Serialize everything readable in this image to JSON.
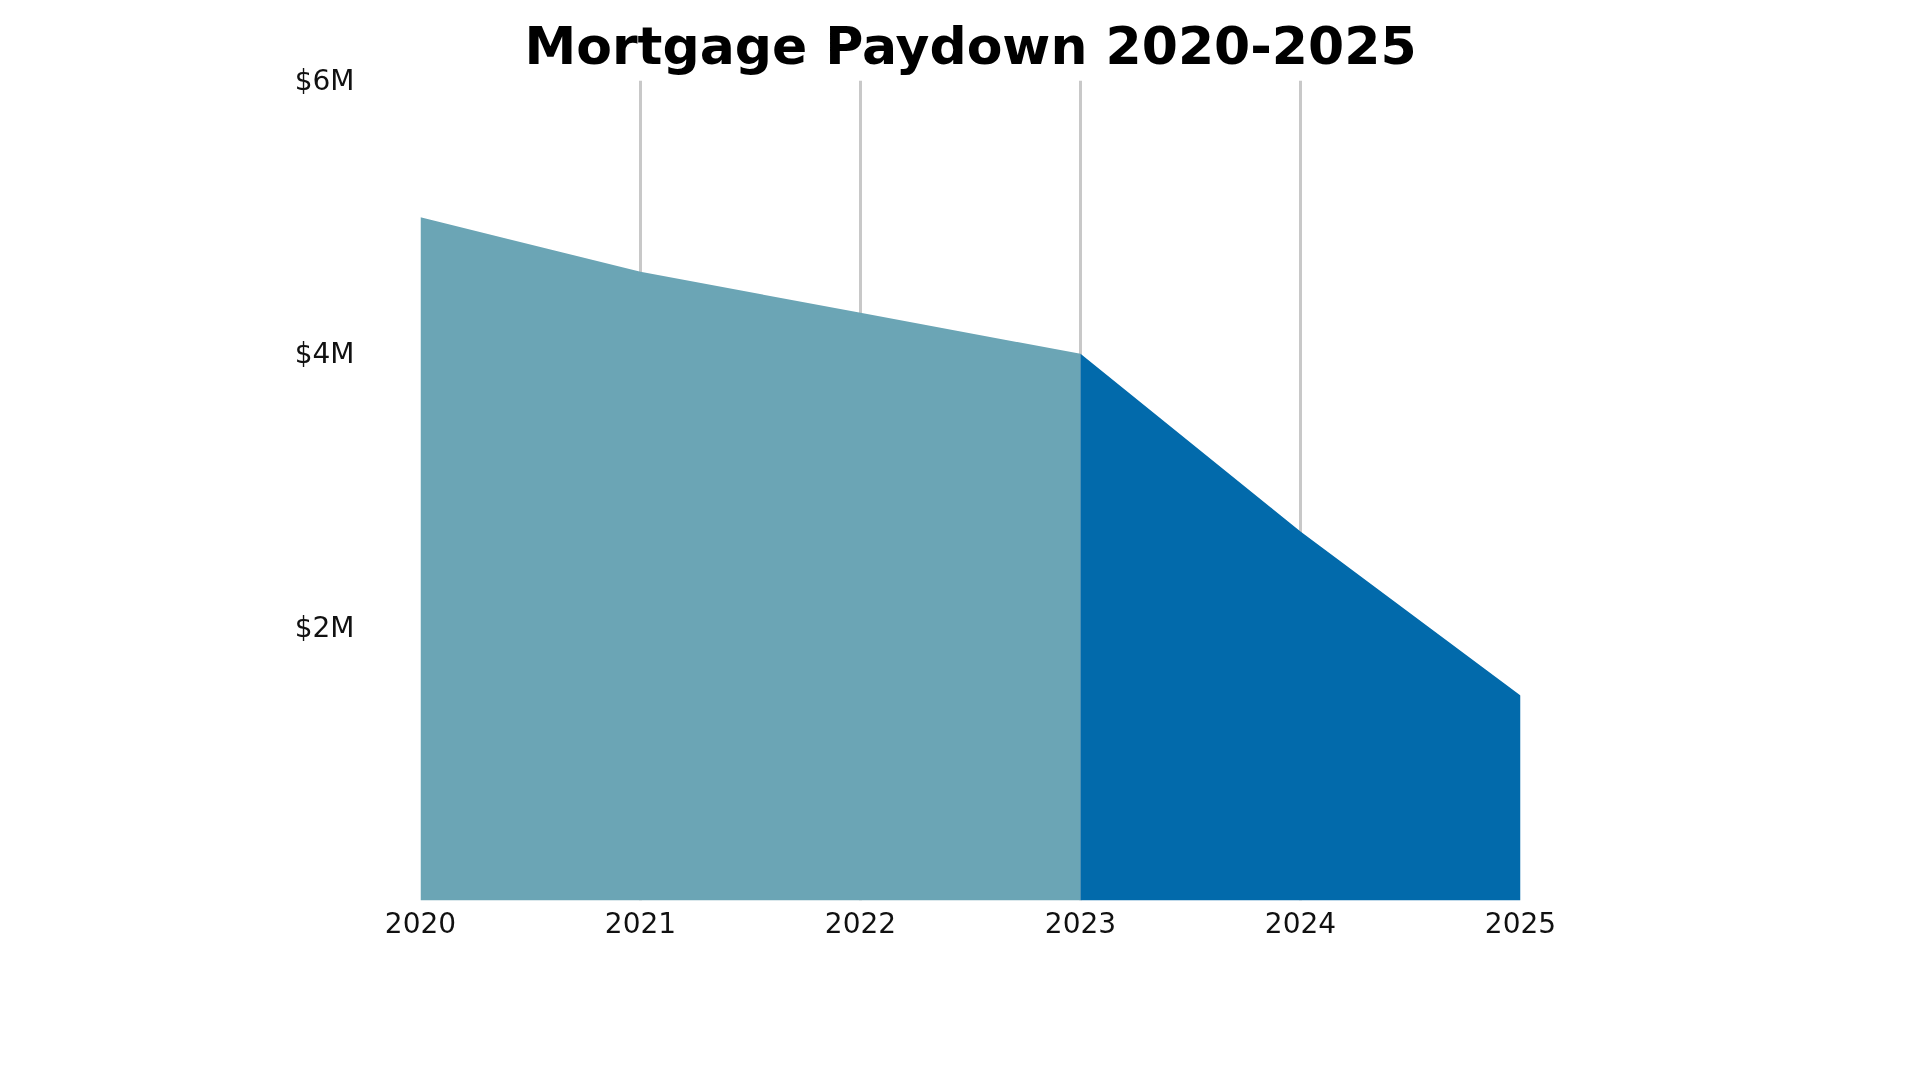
{
  "chart_data": {
    "type": "area",
    "title": "Mortgage Paydown 2020-2025",
    "series": [
      {
        "color": "#6ba5b5",
        "x": [
          2020,
          2021,
          2022,
          2023
        ],
        "values": [
          5.0,
          4.6,
          4.3,
          4.0
        ]
      },
      {
        "color": "#026aab",
        "x": [
          2023,
          2024,
          2025
        ],
        "values": [
          4.0,
          2.7,
          1.5
        ]
      }
    ],
    "xlim": [
      2020,
      2025
    ],
    "xticks": [
      2020,
      2021,
      2022,
      2023,
      2024,
      2025
    ],
    "ylim": [
      0,
      6
    ],
    "yticks": [
      {
        "value": 2,
        "label": "$2M"
      },
      {
        "value": 4,
        "label": "$4M"
      },
      {
        "value": 6,
        "label": "$6M"
      }
    ],
    "grid": "x"
  }
}
